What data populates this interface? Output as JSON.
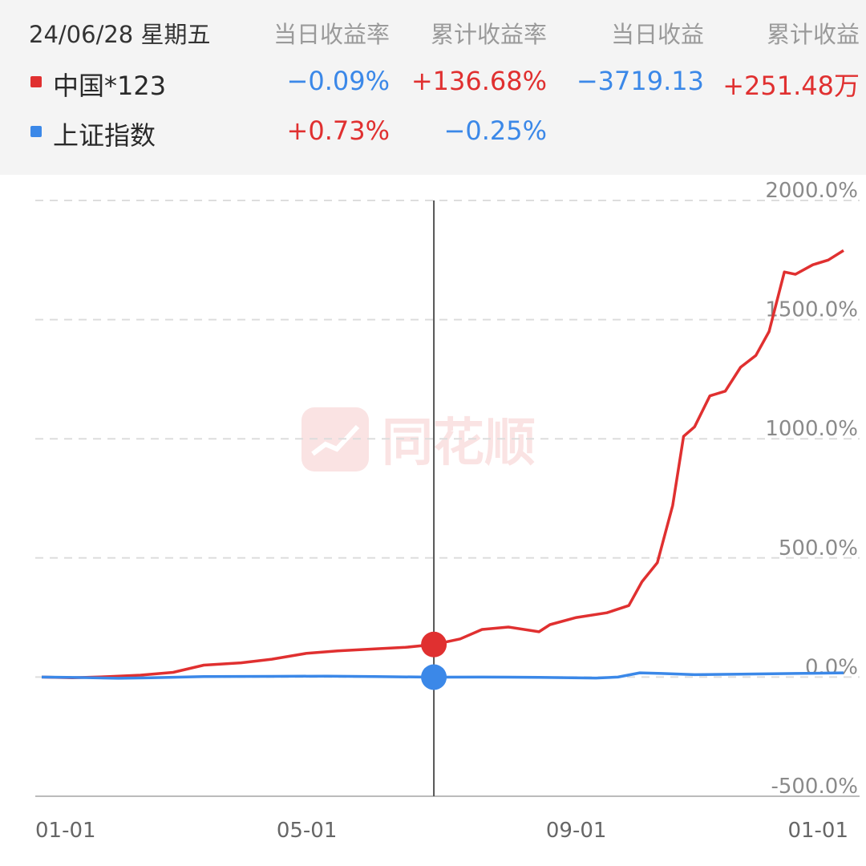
{
  "header": {
    "date": "24/06/28 星期五",
    "columns": [
      "当日收益率",
      "累计收益率",
      "当日收益",
      "累计收益"
    ],
    "rows": [
      {
        "name": "中国*123",
        "color": "#e03030",
        "daily_rate": "−0.09%",
        "cum_rate": "+136.68%",
        "daily_profit": "−3719.13",
        "cum_profit": "+251.48万"
      },
      {
        "name": "上证指数",
        "color": "#3b88e8",
        "daily_rate": "+0.73%",
        "cum_rate": "−0.25%",
        "daily_profit": "",
        "cum_profit": ""
      }
    ]
  },
  "colors": {
    "up": "#e03030",
    "down": "#3b88e8",
    "crosshair": "#555555",
    "grid": "#dddddd"
  },
  "watermark": {
    "text": "同花顺",
    "icon": "chart-logo-icon"
  },
  "chart_data": {
    "type": "line",
    "ylim": [
      -500,
      2000
    ],
    "yticks": [
      "2000.0%",
      "1500.0%",
      "1000.0%",
      "500.0%",
      "0.0%",
      "-500.0%"
    ],
    "ytick_values": [
      2000,
      1500,
      1000,
      500,
      0,
      -500
    ],
    "xticks": [
      "01-01",
      "05-01",
      "09-01",
      "01-01"
    ],
    "xtick_values": [
      "2024-01-01",
      "2024-05-01",
      "2024-09-01",
      "2025-01-01"
    ],
    "grid": true,
    "crosshair_x": "2024-06-28",
    "series": [
      {
        "name": "中国*123",
        "color": "#e03030",
        "x": [
          "2024-01-01",
          "2024-01-15",
          "2024-02-01",
          "2024-02-15",
          "2024-03-01",
          "2024-03-15",
          "2024-04-01",
          "2024-04-15",
          "2024-05-01",
          "2024-05-15",
          "2024-06-01",
          "2024-06-15",
          "2024-06-28",
          "2024-07-10",
          "2024-07-20",
          "2024-08-01",
          "2024-08-15",
          "2024-08-20",
          "2024-09-01",
          "2024-09-15",
          "2024-09-25",
          "2024-10-01",
          "2024-10-08",
          "2024-10-15",
          "2024-10-20",
          "2024-10-25",
          "2024-11-01",
          "2024-11-08",
          "2024-11-15",
          "2024-11-22",
          "2024-11-28",
          "2024-12-05",
          "2024-12-10",
          "2024-12-18",
          "2024-12-25",
          "2025-01-01"
        ],
        "values": [
          0,
          -3,
          2,
          8,
          20,
          50,
          60,
          75,
          100,
          110,
          118,
          125,
          136.68,
          160,
          200,
          210,
          190,
          220,
          250,
          270,
          300,
          400,
          480,
          720,
          1010,
          1050,
          1180,
          1200,
          1300,
          1350,
          1450,
          1700,
          1690,
          1730,
          1750,
          1790
        ]
      },
      {
        "name": "上证指数",
        "color": "#3b88e8",
        "x": [
          "2024-01-01",
          "2024-01-20",
          "2024-02-05",
          "2024-02-20",
          "2024-03-15",
          "2024-04-15",
          "2024-05-10",
          "2024-06-01",
          "2024-06-28",
          "2024-07-20",
          "2024-08-15",
          "2024-09-10",
          "2024-09-20",
          "2024-09-30",
          "2024-10-10",
          "2024-10-25",
          "2024-11-15",
          "2024-12-10",
          "2025-01-01"
        ],
        "values": [
          0,
          -2,
          -5,
          -3,
          2,
          3,
          4,
          2,
          -0.25,
          0,
          -1,
          -4,
          0,
          18,
          15,
          10,
          12,
          15,
          18
        ]
      }
    ]
  }
}
